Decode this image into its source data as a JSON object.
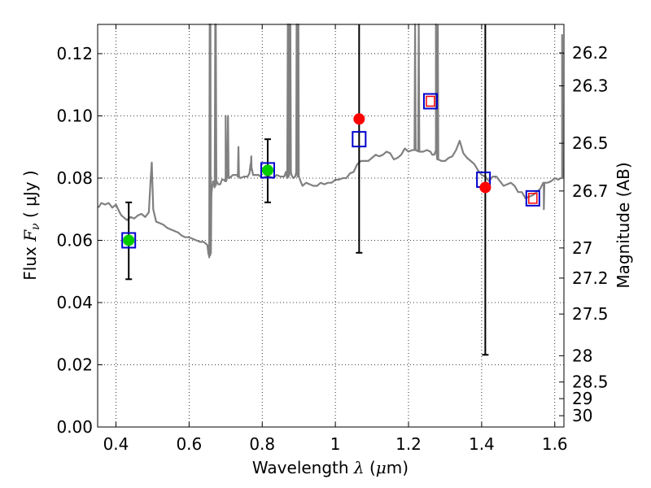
{
  "chart_data": {
    "type": "line",
    "title": "",
    "x_axis": {
      "label_prefix": "Wavelength ",
      "label_symbol": "λ",
      "label_unit_open": " (",
      "label_unit_mu": "μ",
      "label_unit_close": "m)",
      "range": [
        0.35,
        1.625
      ],
      "ticks": [
        0.4,
        0.6,
        0.8,
        1.0,
        1.2,
        1.4,
        1.6
      ],
      "tick_labels": [
        "0.4",
        "0.6",
        "0.8",
        "1",
        "1.2",
        "1.4",
        "1.6"
      ]
    },
    "y_axis_left": {
      "label_prefix": "Flux ",
      "label_symbol": "F",
      "label_subscript": "ν",
      "label_unit": "  ( μJy )",
      "range": [
        0.0,
        0.1294
      ],
      "ticks": [
        0.0,
        0.02,
        0.04,
        0.06,
        0.08,
        0.1,
        0.12
      ],
      "tick_labels": [
        "0.00",
        "0.02",
        "0.04",
        "0.06",
        "0.08",
        "0.10",
        "0.12"
      ]
    },
    "y_axis_right": {
      "label": "Magnitude (AB)",
      "ticks": [
        26.2,
        26.3,
        26.5,
        26.7,
        27.0,
        27.2,
        27.5,
        28.0,
        28.5,
        29.0,
        30.0
      ],
      "tick_labels": [
        "26.2",
        "26.3",
        "26.5",
        "26.7",
        "27",
        "27.2",
        "27.5",
        "28",
        "28.5",
        "29",
        "30"
      ]
    },
    "grid": true,
    "colors": {
      "spectrum": "#808080",
      "observed_green": "#00cc00",
      "observed_red": "#ff0000",
      "model_box": "#0000cc",
      "model_box_inner": "#ff0000",
      "errorbar": "#000000"
    },
    "spectrum": {
      "x": [
        0.352,
        0.36,
        0.37,
        0.38,
        0.39,
        0.4,
        0.41,
        0.415,
        0.42,
        0.43,
        0.44,
        0.45,
        0.46,
        0.47,
        0.48,
        0.49,
        0.495,
        0.498,
        0.502,
        0.51,
        0.52,
        0.53,
        0.54,
        0.55,
        0.56,
        0.57,
        0.58,
        0.59,
        0.6,
        0.61,
        0.62,
        0.63,
        0.64,
        0.645,
        0.65,
        0.653,
        0.655,
        0.657,
        0.659,
        0.661,
        0.665,
        0.67,
        0.675,
        0.68,
        0.685,
        0.69,
        0.695,
        0.7,
        0.705,
        0.71,
        0.72,
        0.73,
        0.74,
        0.75,
        0.76,
        0.765,
        0.768,
        0.771,
        0.775,
        0.78,
        0.79,
        0.8,
        0.81,
        0.82,
        0.83,
        0.84,
        0.85,
        0.86,
        0.865,
        0.868,
        0.871,
        0.874,
        0.877,
        0.88,
        0.885,
        0.89,
        0.893,
        0.897,
        0.9,
        0.905,
        0.91,
        0.92,
        0.93,
        0.94,
        0.95,
        0.96,
        0.97,
        0.98,
        0.99,
        1.0,
        1.01,
        1.02,
        1.03,
        1.04,
        1.05,
        1.06,
        1.07,
        1.08,
        1.09,
        1.1,
        1.11,
        1.12,
        1.13,
        1.14,
        1.15,
        1.16,
        1.17,
        1.18,
        1.19,
        1.2,
        1.21,
        1.22,
        1.23,
        1.24,
        1.25,
        1.26,
        1.265,
        1.268,
        1.27,
        1.275,
        1.28,
        1.29,
        1.3,
        1.31,
        1.32,
        1.33,
        1.34,
        1.35,
        1.36,
        1.37,
        1.38,
        1.39,
        1.4,
        1.41,
        1.42,
        1.43,
        1.44,
        1.45,
        1.46,
        1.47,
        1.48,
        1.49,
        1.5,
        1.51,
        1.52,
        1.53,
        1.54,
        1.55,
        1.56,
        1.57,
        1.58,
        1.59,
        1.6,
        1.61,
        1.615,
        1.62,
        1.623
      ],
      "y": [
        0.0705,
        0.072,
        0.0715,
        0.072,
        0.0705,
        0.0715,
        0.069,
        0.068,
        0.0675,
        0.0665,
        0.0675,
        0.067,
        0.068,
        0.0685,
        0.0675,
        0.069,
        0.08,
        0.085,
        0.07,
        0.066,
        0.0655,
        0.065,
        0.064,
        0.0635,
        0.063,
        0.0625,
        0.0615,
        0.061,
        0.061,
        0.0605,
        0.06,
        0.0595,
        0.0595,
        0.059,
        0.0585,
        0.0555,
        0.0545,
        0.0555,
        0.056,
        0.075,
        0.079,
        0.077,
        0.079,
        0.078,
        0.078,
        0.0795,
        0.0795,
        0.079,
        0.081,
        0.08,
        0.081,
        0.081,
        0.08,
        0.0805,
        0.0805,
        0.0815,
        0.0845,
        0.0825,
        0.081,
        0.081,
        0.081,
        0.08,
        0.0805,
        0.0805,
        0.08,
        0.081,
        0.0805,
        0.0805,
        0.082,
        0.08,
        0.0805,
        0.0815,
        0.082,
        0.081,
        0.08,
        0.0805,
        0.082,
        0.0805,
        0.0805,
        0.079,
        0.0775,
        0.0785,
        0.078,
        0.0775,
        0.0775,
        0.0785,
        0.078,
        0.0785,
        0.0785,
        0.0795,
        0.0795,
        0.08,
        0.08,
        0.0815,
        0.082,
        0.0845,
        0.0855,
        0.0855,
        0.0855,
        0.0865,
        0.0875,
        0.087,
        0.0875,
        0.0885,
        0.088,
        0.086,
        0.0865,
        0.0875,
        0.0895,
        0.0885,
        0.089,
        0.089,
        0.0885,
        0.0885,
        0.089,
        0.0885,
        0.0875,
        0.0875,
        0.0875,
        0.0885,
        0.086,
        0.0855,
        0.0855,
        0.0865,
        0.087,
        0.089,
        0.092,
        0.088,
        0.0865,
        0.0855,
        0.0845,
        0.0825,
        0.081,
        0.0805,
        0.079,
        0.0805,
        0.0805,
        0.079,
        0.0775,
        0.078,
        0.0785,
        0.0775,
        0.0755,
        0.0755,
        0.0735,
        0.074,
        0.0745,
        0.0755,
        0.0765,
        0.0785,
        0.0785,
        0.079,
        0.08,
        0.0795,
        0.08,
        0.08,
        0.083
      ]
    },
    "spectrum_emission_lines": [
      {
        "x": 0.6563,
        "peak": 0.13
      },
      {
        "x": 0.6583,
        "peak": 0.13
      },
      {
        "x": 0.6716,
        "peak": 0.13
      },
      {
        "x": 0.6731,
        "peak": 0.13
      },
      {
        "x": 0.7,
        "peak": 0.1
      },
      {
        "x": 0.735,
        "peak": 0.09
      },
      {
        "x": 0.7065,
        "peak": 0.1
      },
      {
        "x": 0.77,
        "peak": 0.087
      },
      {
        "x": 0.87,
        "peak": 0.13
      },
      {
        "x": 0.872,
        "peak": 0.13
      },
      {
        "x": 0.877,
        "peak": 0.13
      },
      {
        "x": 0.894,
        "peak": 0.13
      },
      {
        "x": 0.899,
        "peak": 0.13
      },
      {
        "x": 1.218,
        "peak": 0.13
      },
      {
        "x": 1.228,
        "peak": 0.13
      },
      {
        "x": 1.275,
        "peak": 0.13
      },
      {
        "x": 1.28,
        "peak": 0.129
      },
      {
        "x": 1.57,
        "peak": 0.07
      },
      {
        "x": 1.62,
        "peak": 0.126
      }
    ],
    "observed_points": [
      {
        "x": 0.435,
        "y": 0.06,
        "err_low": 0.0475,
        "err_high": 0.0722,
        "color": "green"
      },
      {
        "x": 0.815,
        "y": 0.0825,
        "err_low": 0.0722,
        "err_high": 0.0925,
        "color": "green"
      },
      {
        "x": 1.065,
        "y": 0.099,
        "err_low": 0.056,
        "err_high": 0.1294,
        "color": "red"
      },
      {
        "x": 1.41,
        "y": 0.077,
        "err_low": 0.0232,
        "err_high": 0.1294,
        "color": "red"
      }
    ],
    "model_points": [
      {
        "x": 0.435,
        "y": 0.06
      },
      {
        "x": 0.815,
        "y": 0.0825
      },
      {
        "x": 1.065,
        "y": 0.0925
      },
      {
        "x": 1.26,
        "y": 0.1047
      },
      {
        "x": 1.405,
        "y": 0.0795
      },
      {
        "x": 1.54,
        "y": 0.0735
      }
    ],
    "model_inner_points": [
      {
        "x": 1.26,
        "y": 0.1047
      },
      {
        "x": 1.54,
        "y": 0.0735
      }
    ]
  }
}
